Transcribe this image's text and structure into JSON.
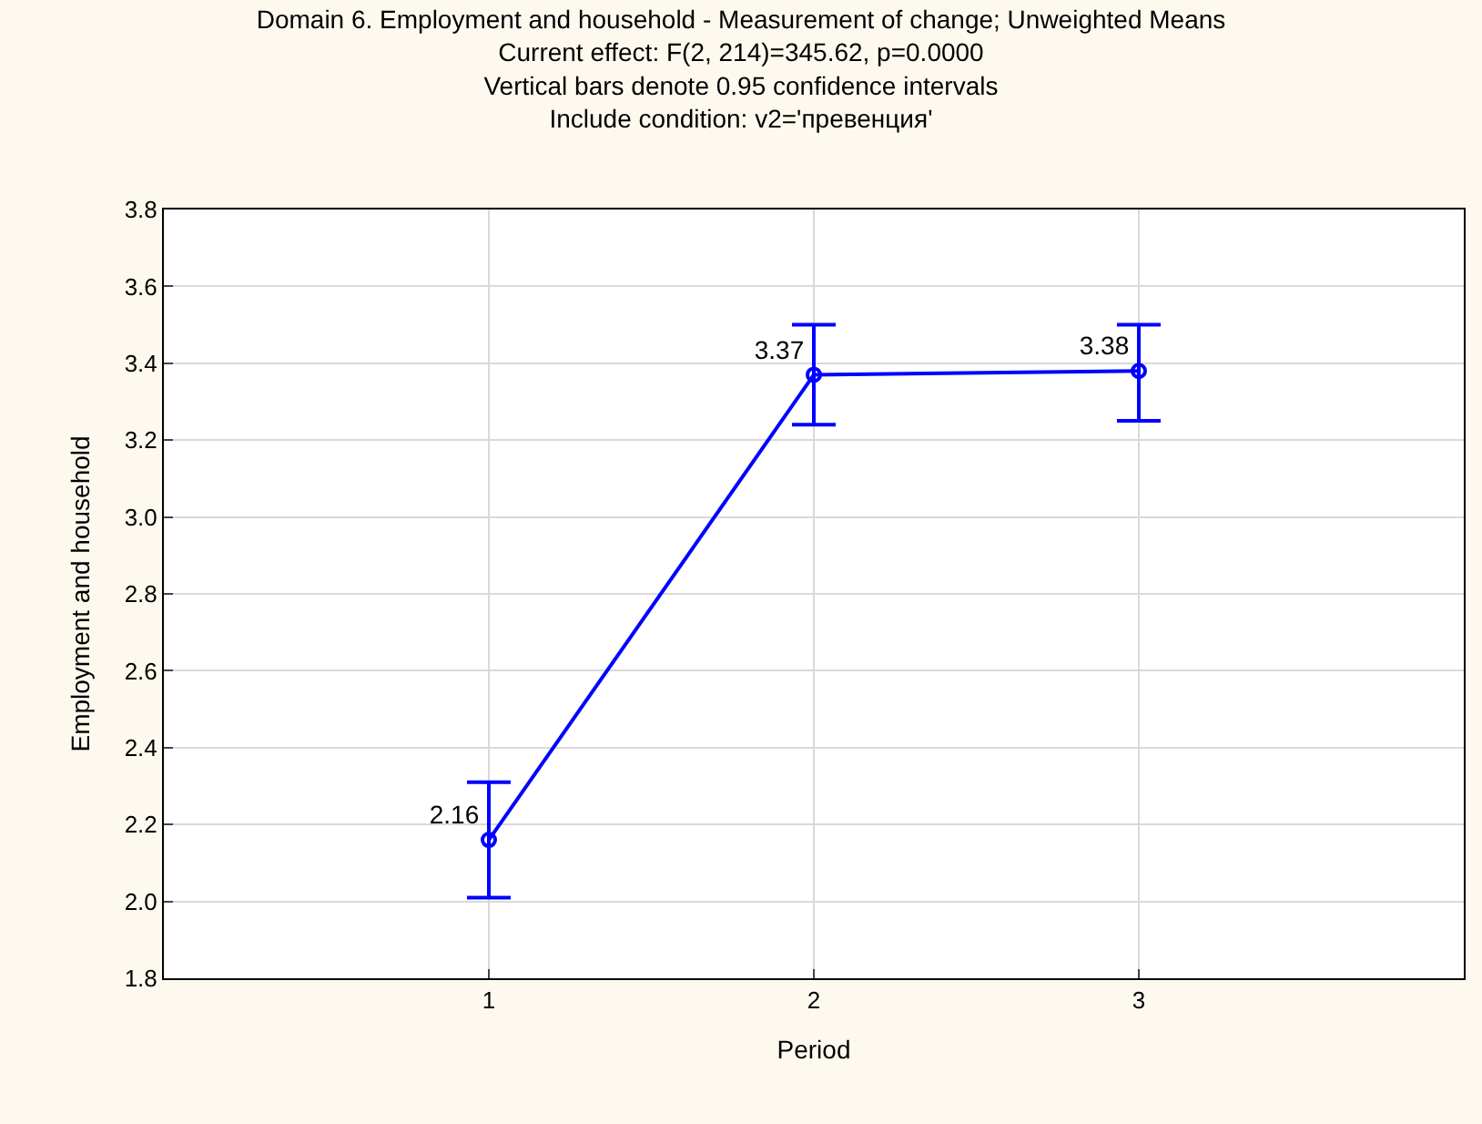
{
  "chart_data": {
    "type": "line",
    "title": "Domain 6. Employment and household - Measurement of change; Unweighted Means",
    "subtitle": "Current effect: F(2, 214)=345.62, p=0.0000",
    "annotations": [
      "Vertical bars denote 0.95 confidence intervals",
      "Include condition: v2='превенция'"
    ],
    "xlabel": "Period",
    "ylabel": "Employment and household",
    "categories": [
      "1",
      "2",
      "3"
    ],
    "series": [
      {
        "color": "#0000ff",
        "values": [
          2.16,
          3.37,
          3.38
        ],
        "errors": [
          [
            2.01,
            2.31
          ],
          [
            3.24,
            3.5
          ],
          [
            3.25,
            3.5
          ]
        ]
      }
    ],
    "ylim": [
      1.8,
      3.8
    ],
    "yticks": [
      {
        "value": 1.8,
        "label": "1.8"
      },
      {
        "value": 2.0,
        "label": "2.0"
      },
      {
        "value": 2.2,
        "label": "2.2"
      },
      {
        "value": 2.4,
        "label": "2.4"
      },
      {
        "value": 2.6,
        "label": "2.6"
      },
      {
        "value": 2.8,
        "label": "2.8"
      },
      {
        "value": 3.0,
        "label": "3.0"
      },
      {
        "value": 3.2,
        "label": "3.2"
      },
      {
        "value": 3.4,
        "label": "3.4"
      },
      {
        "value": 3.6,
        "label": "3.6"
      },
      {
        "value": 3.8,
        "label": "3.8"
      }
    ],
    "grid": true,
    "marker": "circle",
    "line_style": "solid",
    "data_labels": true
  }
}
